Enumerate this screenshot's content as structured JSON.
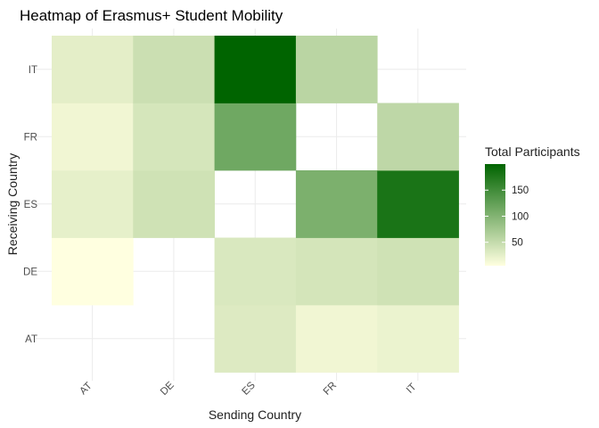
{
  "chart_data": {
    "type": "heatmap",
    "title": "Heatmap of Erasmus+ Student Mobility",
    "xlabel": "Sending Country",
    "ylabel": "Receiving Country",
    "x_categories": [
      "AT",
      "DE",
      "ES",
      "FR",
      "IT"
    ],
    "y_categories": [
      "AT",
      "DE",
      "ES",
      "FR",
      "IT"
    ],
    "cells": [
      {
        "x": "AT",
        "y": "DE",
        "value": 5
      },
      {
        "x": "AT",
        "y": "ES",
        "value": 24
      },
      {
        "x": "AT",
        "y": "FR",
        "value": 16
      },
      {
        "x": "AT",
        "y": "IT",
        "value": 26
      },
      {
        "x": "DE",
        "y": "ES",
        "value": 42
      },
      {
        "x": "DE",
        "y": "FR",
        "value": 37
      },
      {
        "x": "DE",
        "y": "IT",
        "value": 45
      },
      {
        "x": "ES",
        "y": "AT",
        "value": 31
      },
      {
        "x": "ES",
        "y": "DE",
        "value": 34
      },
      {
        "x": "ES",
        "y": "FR",
        "value": 115
      },
      {
        "x": "ES",
        "y": "IT",
        "value": 200
      },
      {
        "x": "FR",
        "y": "AT",
        "value": 16
      },
      {
        "x": "FR",
        "y": "DE",
        "value": 38
      },
      {
        "x": "FR",
        "y": "ES",
        "value": 105
      },
      {
        "x": "FR",
        "y": "IT",
        "value": 58
      },
      {
        "x": "IT",
        "y": "AT",
        "value": 20
      },
      {
        "x": "IT",
        "y": "DE",
        "value": 42
      },
      {
        "x": "IT",
        "y": "ES",
        "value": 180
      },
      {
        "x": "IT",
        "y": "FR",
        "value": 55
      }
    ],
    "legend": {
      "title": "Total Participants",
      "ticks": [
        50,
        100,
        150
      ],
      "range": [
        5,
        200
      ],
      "placement": "right"
    },
    "colors": {
      "low": "#ffffe0",
      "high": "#006400"
    },
    "grid": true
  }
}
